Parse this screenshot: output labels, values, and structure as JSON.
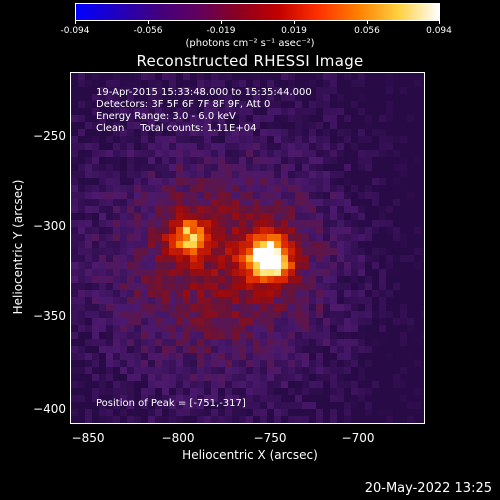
{
  "colorbar": {
    "ticks": [
      "-0.094",
      "-0.056",
      "-0.019",
      "0.019",
      "0.056",
      "0.094"
    ],
    "units": "(photons cm⁻² s⁻¹ asec⁻²)",
    "colormap": [
      "#0000ff",
      "#2000c0",
      "#400080",
      "#600060",
      "#8a0020",
      "#c00000",
      "#ff3000",
      "#ff8000",
      "#ffd040",
      "#ffffff"
    ]
  },
  "title": "Reconstructed RHESSI Image",
  "annotations": {
    "time_range": "19-Apr-2015 15:33:48.000 to 15:35:44.000",
    "detectors": "Detectors: 3F 5F 6F 7F 8F 9F, Att 0",
    "energy": "Energy Range: 3.0 - 6.0 keV",
    "clean": "Clean     Total counts: 1.11E+04",
    "peak": "Position of Peak = [-751,-317]"
  },
  "axes": {
    "xlabel": "Heliocentric X (arcsec)",
    "ylabel": "Heliocentric Y (arcsec)",
    "xticks": [
      "−850",
      "−800",
      "−750",
      "−700"
    ],
    "yticks": [
      "−250",
      "−300",
      "−350",
      "−400"
    ]
  },
  "datestamp": "20-May-2022 13:25",
  "sources": {
    "peak": {
      "x": -751,
      "y": -317
    },
    "secondary": {
      "x": -795,
      "y": -305
    }
  }
}
